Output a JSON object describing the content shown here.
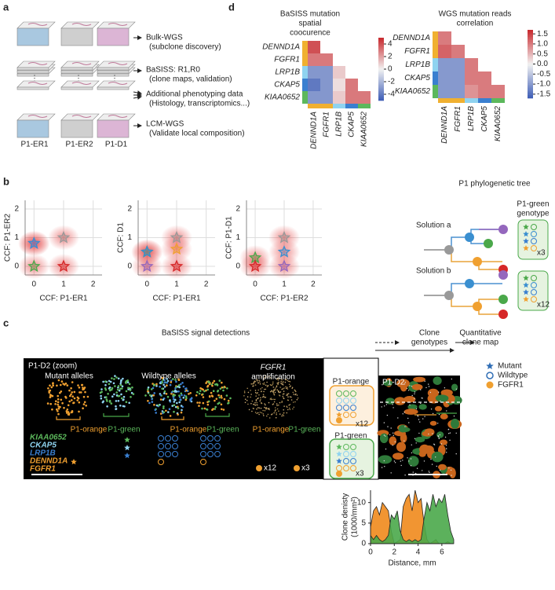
{
  "panel_labels": {
    "a": "a",
    "b": "b",
    "c": "c",
    "d": "d"
  },
  "panel_a": {
    "outputs": [
      {
        "title": "Bulk-WGS",
        "subtitle": "(subclone discovery)"
      },
      {
        "title": "BaSISS: R1,R0",
        "subtitle": "(clone maps, validation)"
      },
      {
        "title": "Additional phenotyping data",
        "subtitle": "(Histology, transcriptomics...)"
      },
      {
        "title": "LCM-WGS",
        "subtitle": "(Validate local composition)"
      }
    ],
    "samples": [
      "P1-ER1",
      "P1-ER2",
      "P1-D1"
    ]
  },
  "panel_b": {
    "tree_title": "P1 phylogenetic tree",
    "solutions": [
      {
        "name": "Solution a",
        "copies": "x3"
      },
      {
        "name": "Solution b",
        "copies": "x12"
      }
    ],
    "genotype_title": [
      "P1-green",
      "genotype"
    ]
  },
  "panel_c": {
    "headers": {
      "detections": "BaSISS signal detections",
      "genotypes": [
        "Clone",
        "genotypes"
      ],
      "map": [
        "Quantitative",
        "clone map"
      ]
    },
    "zoom_title": "P1-D2 (zoom)",
    "views": [
      "Mutant alleles",
      "Wildtype alleles"
    ],
    "amplification": [
      "FGFR1",
      "amplification"
    ],
    "clone_labels": [
      "P1-orange",
      "P1-green"
    ],
    "genes": [
      {
        "name": "KIAA0652",
        "color": "#5cb85c"
      },
      {
        "name": "CKAP5",
        "color": "#8fd3f0"
      },
      {
        "name": "LRP1B",
        "color": "#3a7fd0"
      },
      {
        "name": "DENND1A",
        "color": "#f0a030"
      },
      {
        "name": "FGFR1",
        "color": "#f0a030"
      }
    ],
    "copies": [
      "x12",
      "x3"
    ],
    "genotypes": [
      {
        "name": "P1-orange",
        "copies": "x12"
      },
      {
        "name": "P1-green",
        "copies": "x3"
      }
    ],
    "map_title": "P1-D2",
    "legend": [
      {
        "label": "Mutant",
        "color": "#2f6db5"
      },
      {
        "label": "Wildtype",
        "color": "#2f6db5"
      },
      {
        "label": "FGFR1",
        "color": "#f0a030"
      }
    ]
  },
  "chart_data": [
    {
      "type": "scatter",
      "xlabel": "CCF: P1-ER1",
      "ylabel": "CCF: P1-ER2",
      "xlim": [
        -0.3,
        2.3
      ],
      "ylim": [
        -0.3,
        2.3
      ],
      "xticks": [
        0,
        1,
        2
      ],
      "yticks": [
        0,
        1,
        2
      ],
      "grid": true,
      "x": [
        0,
        0,
        0,
        1,
        1
      ],
      "y": [
        0.8,
        0.8,
        0,
        1,
        0
      ],
      "colors": [
        "#9467bd",
        "#3a8fd0",
        "#4aa84a",
        "#999999",
        "#d62728"
      ]
    },
    {
      "type": "scatter",
      "xlabel": "CCF: P1-ER1",
      "ylabel": "CCF: D1",
      "xlim": [
        -0.3,
        2.3
      ],
      "ylim": [
        -0.3,
        2.3
      ],
      "xticks": [
        0,
        1,
        2
      ],
      "yticks": [
        0,
        1,
        2
      ],
      "grid": true,
      "x": [
        0,
        0,
        0,
        1,
        1,
        1
      ],
      "y": [
        0.5,
        0.5,
        0,
        1,
        0.6,
        0
      ],
      "colors": [
        "#4aa84a",
        "#3a8fd0",
        "#9467bd",
        "#999999",
        "#f0a030",
        "#d62728"
      ]
    },
    {
      "type": "scatter",
      "xlabel": "CCF: P1-ER2",
      "ylabel": "CCF: P1-D1",
      "xlim": [
        -0.3,
        2.3
      ],
      "ylim": [
        -0.3,
        2.3
      ],
      "xticks": [
        0,
        1,
        2
      ],
      "yticks": [
        0,
        1,
        2
      ],
      "grid": true,
      "x": [
        0,
        0,
        1,
        1,
        1
      ],
      "y": [
        0.3,
        0,
        0.5,
        1,
        0
      ],
      "colors": [
        "#4aa84a",
        "#d62728",
        "#3a8fd0",
        "#999999",
        "#9467bd"
      ]
    },
    {
      "type": "heatmap",
      "title": [
        "BaSISS mutation",
        "spatial",
        "coocurence"
      ],
      "labels": [
        "DENND1A",
        "FGFR1",
        "LRP1B",
        "CKAP5",
        "KIAA0652"
      ],
      "label_colors": [
        "#f0b030",
        "#f0b030",
        "#8fd3f0",
        "#3a7fd0",
        "#5cb85c"
      ],
      "values": [
        [
          4
        ],
        [
          3,
          3
        ],
        [
          -3,
          -3,
          1
        ],
        [
          -4,
          -3,
          0.5,
          3
        ],
        [
          -3,
          -3,
          1,
          3,
          3
        ]
      ],
      "clim": [
        -5,
        5
      ],
      "cticks": [
        4,
        2,
        0,
        -2,
        -4
      ],
      "colormap": [
        "#3b5bb5",
        "#f2f2f2",
        "#c8282d"
      ]
    },
    {
      "type": "heatmap",
      "title": [
        "WGS mutation reads",
        "correlation"
      ],
      "labels": [
        "DENND1A",
        "FGFR1",
        "LRP1B",
        "CKAP5",
        "KIAA0652"
      ],
      "label_colors": [
        "#f0b030",
        "#f0b030",
        "#8fd3f0",
        "#3a7fd0",
        "#5cb85c"
      ],
      "values": [
        [
          1
        ],
        [
          1.2,
          1
        ],
        [
          -1,
          -1,
          1
        ],
        [
          -1,
          -1,
          1,
          1
        ],
        [
          -1,
          -1,
          0.8,
          1,
          1
        ]
      ],
      "clim": [
        -1.7,
        1.7
      ],
      "cticks": [
        1.5,
        {
          "value": 1,
          "label": "1.0"
        },
        0.5,
        {
          "value": 0,
          "label": "0.0"
        },
        -0.5,
        {
          "value": -1,
          "label": "-1.0"
        },
        -1.5
      ],
      "colormap": [
        "#3b5bb5",
        "#f2f2f2",
        "#c8282d"
      ]
    },
    {
      "type": "area",
      "xlabel": "Distance, mm",
      "ylabel": [
        "Clone denisty",
        "(1000/mm²)"
      ],
      "xlim": [
        0,
        7
      ],
      "ylim": [
        0,
        13
      ],
      "xticks": [
        0,
        2,
        4,
        6
      ],
      "yticks": [
        0,
        5,
        10
      ],
      "x": [
        0,
        0.25,
        0.5,
        0.75,
        1,
        1.25,
        1.5,
        1.75,
        2,
        2.25,
        2.5,
        2.75,
        3,
        3.25,
        3.5,
        3.75,
        4,
        4.25,
        4.5,
        4.75,
        5,
        5.25,
        5.5,
        5.75,
        6,
        6.25,
        6.5,
        6.75,
        7
      ],
      "series": [
        {
          "color": "#f08a1c",
          "values": [
            4,
            8,
            9,
            7,
            10,
            9,
            8,
            3,
            0,
            0.5,
            1,
            9,
            11,
            12,
            8,
            13,
            10,
            11,
            5,
            1,
            0,
            0.5,
            1,
            0,
            0,
            0,
            0.5,
            0,
            0
          ]
        },
        {
          "color": "#4aa84a",
          "values": [
            2,
            1,
            2,
            1,
            0.5,
            1,
            2,
            7,
            6,
            8,
            3,
            1,
            0.5,
            1,
            0.5,
            1,
            0.5,
            1,
            6,
            10,
            8,
            12,
            9,
            11,
            10,
            12,
            7,
            3,
            1
          ]
        }
      ]
    }
  ]
}
